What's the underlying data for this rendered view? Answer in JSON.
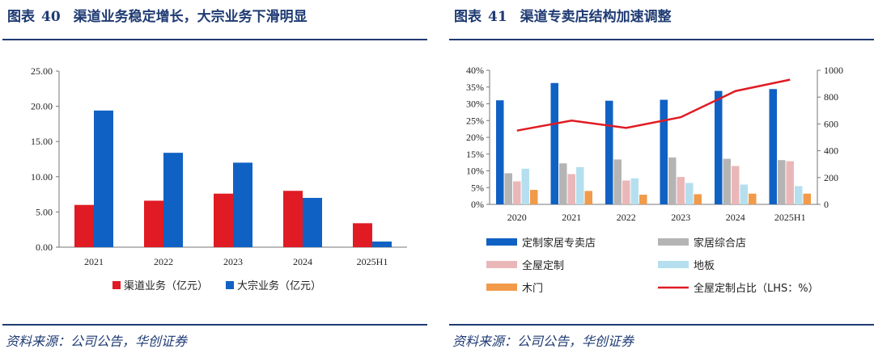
{
  "left": {
    "title_label": "图表",
    "title_num": "40",
    "title_text": "渠道业务稳定增长，大宗业务下滑明显",
    "source": "资料来源：公司公告，华创证券"
  },
  "right": {
    "title_label": "图表",
    "title_num": "41",
    "title_text": "渠道专卖店结构加速调整",
    "source": "资料来源：公司公告，华创证券"
  },
  "colors": {
    "red": "#e01b23",
    "blue": "#1061c4",
    "gray": "#b4b4b4",
    "pink": "#eab7b8",
    "lightblue": "#b5dfee",
    "orange": "#f19a4a",
    "line": "#e01b23",
    "axis": "#777777",
    "title": "#1f3b73"
  },
  "chart_data": [
    {
      "type": "bar",
      "title": "渠道业务稳定增长，大宗业务下滑明显",
      "categories": [
        "2021",
        "2022",
        "2023",
        "2024",
        "2025H1"
      ],
      "series": [
        {
          "name": "渠道业务（亿元）",
          "values": [
            6.0,
            6.6,
            7.6,
            8.0,
            3.4
          ]
        },
        {
          "name": "大宗业务（亿元）",
          "values": [
            19.4,
            13.4,
            12.0,
            7.0,
            0.8
          ]
        }
      ],
      "ylim": [
        0,
        25
      ],
      "yticks": [
        "0.00",
        "5.00",
        "10.00",
        "15.00",
        "20.00",
        "25.00"
      ],
      "legend_position": "bottom",
      "grid": false
    },
    {
      "type": "bar",
      "title": "渠道专卖店结构加速调整",
      "categories": [
        "2020",
        "2021",
        "2022",
        "2023",
        "2024",
        "2025H1"
      ],
      "series": [
        {
          "name": "定制家居专卖店",
          "axis": "right",
          "values": [
            776,
            905,
            773,
            780,
            846,
            860
          ]
        },
        {
          "name": "家居综合店",
          "axis": "right",
          "values": [
            232,
            306,
            335,
            350,
            340,
            330
          ]
        },
        {
          "name": "全屋定制",
          "axis": "right",
          "values": [
            172,
            226,
            178,
            204,
            286,
            322
          ]
        },
        {
          "name": "地板",
          "axis": "right",
          "values": [
            266,
            278,
            194,
            160,
            148,
            136
          ]
        },
        {
          "name": "木门",
          "axis": "right",
          "values": [
            108,
            100,
            72,
            76,
            80,
            80
          ]
        },
        {
          "name": "全屋定制占比（LHS：%）",
          "type": "line",
          "axis": "left",
          "values": [
            22.0,
            25.0,
            22.8,
            26.0,
            33.8,
            37.2
          ]
        }
      ],
      "ylim_left": [
        0,
        40
      ],
      "yticks_left": [
        "0%",
        "5%",
        "10%",
        "15%",
        "20%",
        "25%",
        "30%",
        "35%",
        "40%"
      ],
      "ylim_right": [
        0,
        1000
      ],
      "yticks_right": [
        "0",
        "200",
        "400",
        "600",
        "800",
        "1000"
      ],
      "legend_position": "bottom",
      "grid": false
    }
  ]
}
